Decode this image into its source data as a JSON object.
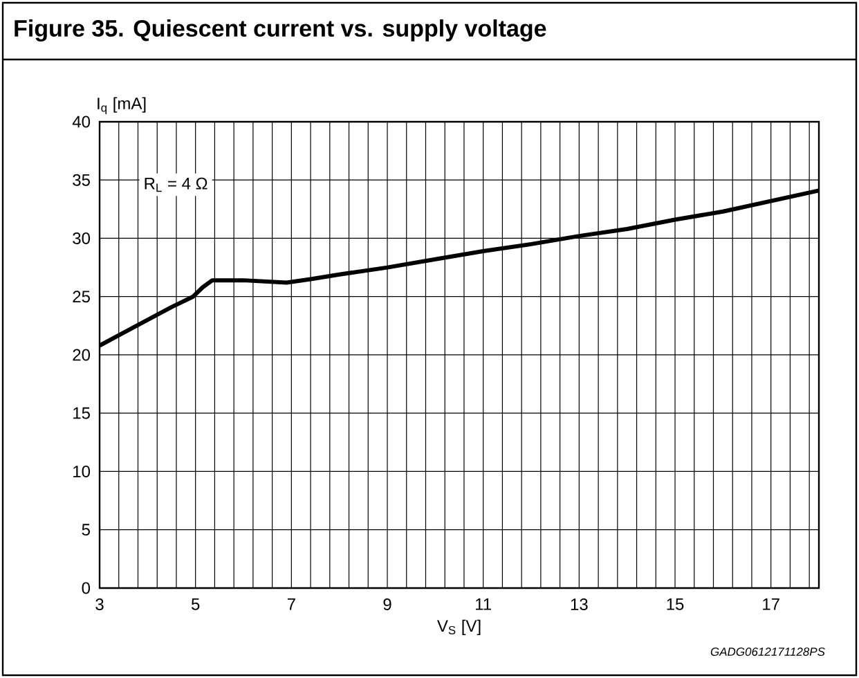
{
  "chart_data": {
    "type": "line",
    "title": "Figure 35. Quiescent current vs. supply voltage",
    "xlabel": "V$_{S}$ [V]",
    "ylabel": "I$_{q}$ [mA]",
    "annotations": [
      "R$_{L}$ = 4 Ω",
      "GADG0612171128PS"
    ],
    "x": [
      3,
      3.5,
      4,
      4.5,
      4.95,
      5.15,
      5.35,
      6,
      6.9,
      7.4,
      8,
      9,
      10,
      11,
      12,
      13,
      14,
      15,
      16,
      17,
      18
    ],
    "series": [
      {
        "color": "#000000",
        "values": [
          20.8,
          21.9,
          23.0,
          24.1,
          25.0,
          25.8,
          26.4,
          26.4,
          26.2,
          26.5,
          26.9,
          27.5,
          28.2,
          28.9,
          29.5,
          30.2,
          30.8,
          31.6,
          32.3,
          33.2,
          34.1
        ]
      }
    ],
    "xlim": [
      3,
      18
    ],
    "ylim": [
      0,
      40
    ],
    "xticks": [
      3,
      {
        "value": 3.4,
        "label": null
      },
      {
        "value": 3.8,
        "label": null
      },
      {
        "value": 4.2,
        "label": null
      },
      {
        "value": 4.6,
        "label": null
      },
      5,
      {
        "value": 5.4,
        "label": null
      },
      {
        "value": 5.8,
        "label": null
      },
      {
        "value": 6.2,
        "label": null
      },
      {
        "value": 6.6,
        "label": null
      },
      7,
      {
        "value": 7.4,
        "label": null
      },
      {
        "value": 7.8,
        "label": null
      },
      {
        "value": 8.2,
        "label": null
      },
      {
        "value": 8.6,
        "label": null
      },
      9,
      {
        "value": 9.4,
        "label": null
      },
      {
        "value": 9.8,
        "label": null
      },
      {
        "value": 10.2,
        "label": null
      },
      {
        "value": 10.6,
        "label": null
      },
      11,
      {
        "value": 11.4,
        "label": null
      },
      {
        "value": 11.8,
        "label": null
      },
      {
        "value": 12.2,
        "label": null
      },
      {
        "value": 12.6,
        "label": null
      },
      13,
      {
        "value": 13.4,
        "label": null
      },
      {
        "value": 13.8,
        "label": null
      },
      {
        "value": 14.2,
        "label": null
      },
      {
        "value": 14.6,
        "label": null
      },
      15,
      {
        "value": 15.4,
        "label": null
      },
      {
        "value": 15.8,
        "label": null
      },
      {
        "value": 16.2,
        "label": null
      },
      {
        "value": 16.6,
        "label": null
      },
      17,
      {
        "value": 17.4,
        "label": null
      },
      {
        "value": 17.8,
        "label": null
      }
    ],
    "yticks": [
      0,
      5,
      10,
      15,
      20,
      25,
      30,
      35,
      40
    ],
    "grid": true,
    "line_style": "solid"
  }
}
